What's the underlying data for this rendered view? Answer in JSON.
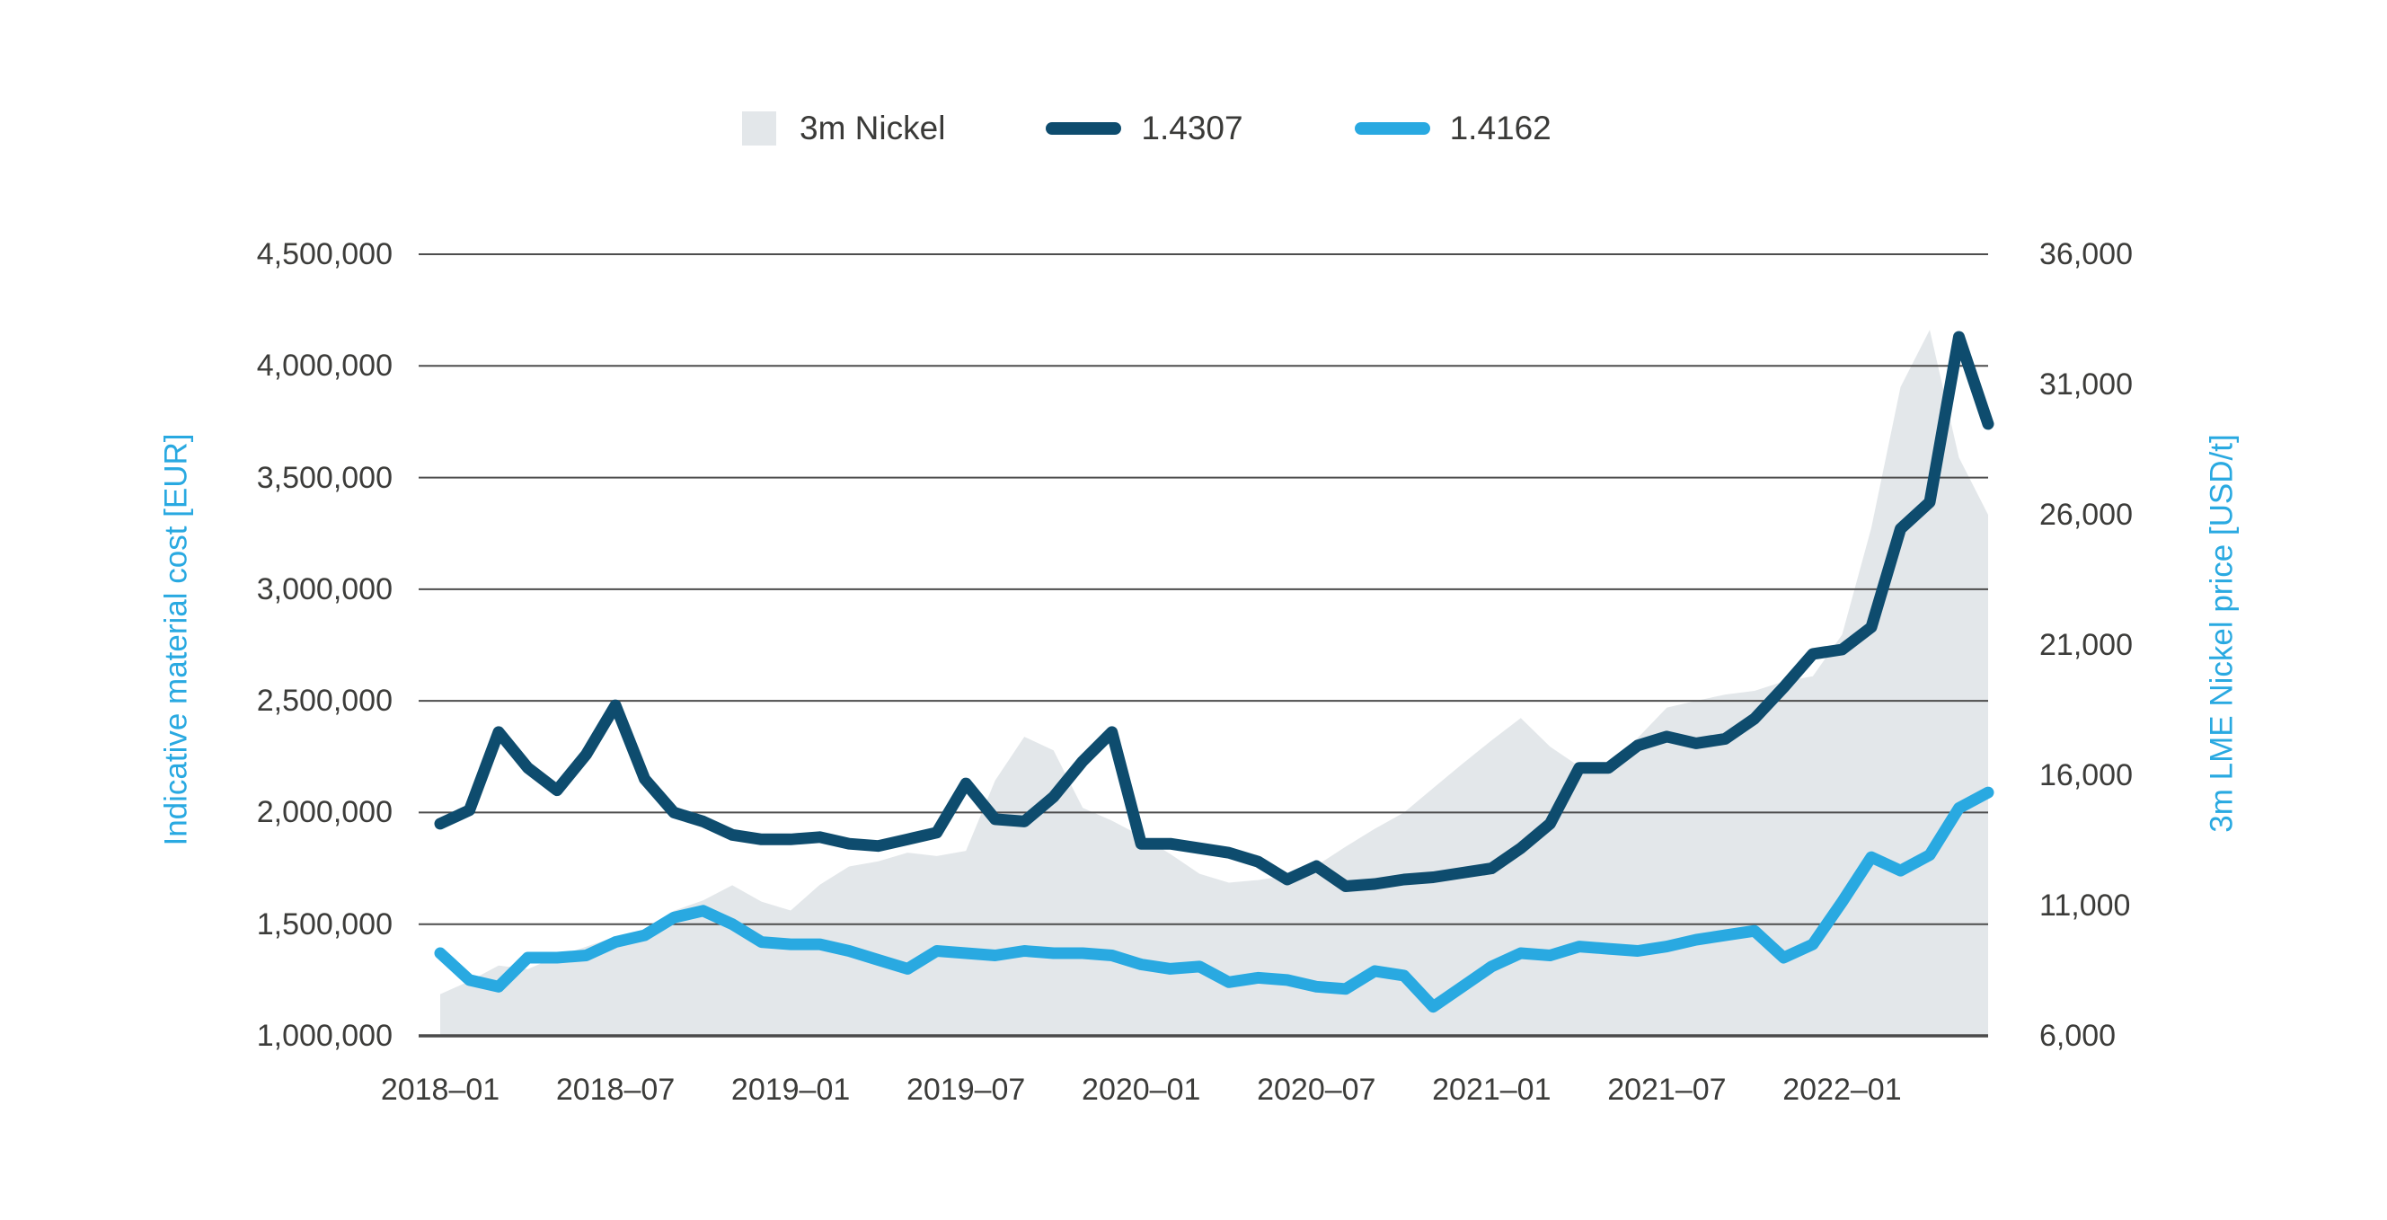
{
  "legend": {
    "items": [
      {
        "label": "3m Nickel",
        "swatch_type": "area"
      },
      {
        "label": "1.4307",
        "swatch_type": "line"
      },
      {
        "label": "1.4162",
        "swatch_type": "line"
      }
    ]
  },
  "chart_data": {
    "type": "area",
    "title": "",
    "grid": true,
    "legend_position": "top",
    "x": [
      "2018-01",
      "2018-02",
      "2018-03",
      "2018-04",
      "2018-05",
      "2018-06",
      "2018-07",
      "2018-08",
      "2018-09",
      "2018-10",
      "2018-11",
      "2018-12",
      "2019-01",
      "2019-02",
      "2019-03",
      "2019-04",
      "2019-05",
      "2019-06",
      "2019-07",
      "2019-08",
      "2019-09",
      "2019-10",
      "2019-11",
      "2019-12",
      "2020-01",
      "2020-02",
      "2020-03",
      "2020-04",
      "2020-05",
      "2020-06",
      "2020-07",
      "2020-08",
      "2020-09",
      "2020-10",
      "2020-11",
      "2020-12",
      "2021-01",
      "2021-02",
      "2021-03",
      "2021-04",
      "2021-05",
      "2021-06",
      "2021-07",
      "2021-08",
      "2021-09",
      "2021-10",
      "2021-11",
      "2021-12",
      "2022-01",
      "2022-02",
      "2022-03",
      "2022-04",
      "2022-05",
      "2022-06"
    ],
    "x_tick_labels": [
      "2018–01",
      "2018–07",
      "2019–01",
      "2019–07",
      "2020–01",
      "2020–07",
      "2021–01",
      "2021–07",
      "2022–01"
    ],
    "left_axis": {
      "label": "Indicative material cost [EUR]",
      "min": 1000000,
      "max": 4500000,
      "ticks": [
        "4,500,000",
        "4,000,000",
        "3,500,000",
        "3,000,000",
        "2,500,000",
        "2,000,000",
        "1,500,000",
        "1,000,000"
      ]
    },
    "right_axis": {
      "label": "3m LME Nickel price [USD/t]",
      "min": 6000,
      "max": 36000,
      "ticks": [
        "36,000",
        "31,000",
        "26,000",
        "21,000",
        "16,000",
        "11,000",
        "6,000"
      ]
    },
    "series": [
      {
        "name": "3m Nickel",
        "type": "area",
        "axis": "right",
        "color": "#e3e7ea",
        "values": [
          7600,
          8100,
          8700,
          8560,
          9040,
          9420,
          9800,
          10050,
          10800,
          11200,
          11780,
          11150,
          10810,
          11800,
          12500,
          12700,
          13030,
          12900,
          13100,
          15800,
          17480,
          16960,
          14750,
          14260,
          13670,
          12980,
          12220,
          11880,
          11980,
          12150,
          12530,
          13260,
          13950,
          14570,
          15510,
          16440,
          17340,
          18200,
          17100,
          16340,
          16430,
          17430,
          18600,
          18860,
          19100,
          19240,
          19600,
          19800,
          21400,
          25500,
          30900,
          33100,
          28200,
          26000
        ]
      },
      {
        "name": "1.4307",
        "type": "line",
        "axis": "left",
        "color": "#0e4c6e",
        "values": [
          1950000,
          2010000,
          2360000,
          2200000,
          2100000,
          2260000,
          2480000,
          2150000,
          2000000,
          1960000,
          1900000,
          1880000,
          1880000,
          1890000,
          1860000,
          1850000,
          1880000,
          1910000,
          2130000,
          1970000,
          1960000,
          2070000,
          2230000,
          2360000,
          1860000,
          1860000,
          1840000,
          1820000,
          1780000,
          1700000,
          1760000,
          1670000,
          1680000,
          1700000,
          1710000,
          1730000,
          1750000,
          1840000,
          1950000,
          2200000,
          2200000,
          2300000,
          2340000,
          2310000,
          2330000,
          2420000,
          2560000,
          2710000,
          2730000,
          2830000,
          3270000,
          3390000,
          4130000,
          3740000
        ]
      },
      {
        "name": "1.4162",
        "type": "line",
        "axis": "left",
        "color": "#29a9e1",
        "values": [
          1370000,
          1250000,
          1220000,
          1350000,
          1350000,
          1360000,
          1420000,
          1450000,
          1530000,
          1560000,
          1500000,
          1420000,
          1410000,
          1410000,
          1380000,
          1340000,
          1300000,
          1380000,
          1370000,
          1360000,
          1380000,
          1370000,
          1370000,
          1360000,
          1320000,
          1300000,
          1310000,
          1240000,
          1260000,
          1250000,
          1220000,
          1210000,
          1290000,
          1270000,
          1130000,
          1220000,
          1310000,
          1370000,
          1360000,
          1400000,
          1390000,
          1380000,
          1400000,
          1430000,
          1450000,
          1470000,
          1350000,
          1410000,
          1600000,
          1800000,
          1740000,
          1810000,
          2020000,
          2090000
        ]
      }
    ],
    "style": {
      "gridline_color": "#4d4d4d",
      "axis_line_color": "#4a4a4a",
      "tick_text_color": "#3c3c3a",
      "axis_title_color": "#29a9e1",
      "background": "#ffffff"
    }
  }
}
